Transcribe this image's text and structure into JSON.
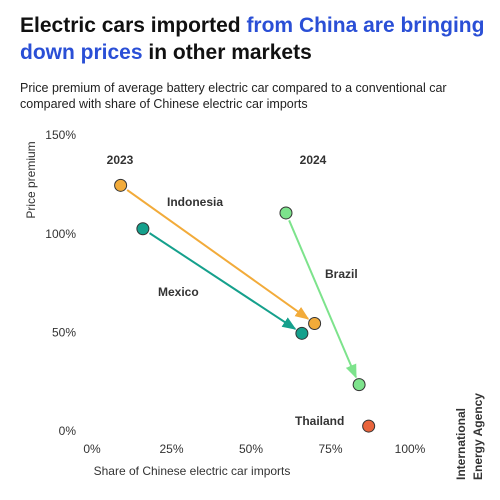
{
  "chart_data": {
    "type": "scatter",
    "title_parts": [
      "Electric cars imported ",
      "from China are bringing down prices",
      " in other markets"
    ],
    "subtitle": "Price premium of average battery electric car compared to a conventional car compared with share of Chinese electric car imports",
    "x_label": "Share of Chinese electric car imports",
    "y_label": "Price premium",
    "years": [
      "2023",
      "2024"
    ],
    "xlim": [
      0,
      100
    ],
    "ylim": [
      0,
      150
    ],
    "xticks": [
      {
        "value": 0,
        "label": "0%"
      },
      {
        "value": 25,
        "label": "25%"
      },
      {
        "value": 50,
        "label": "50%"
      },
      {
        "value": 75,
        "label": "75%"
      },
      {
        "value": 100,
        "label": "100%"
      }
    ],
    "yticks": [
      {
        "value": 0,
        "label": "0%"
      },
      {
        "value": 50,
        "label": "50%"
      },
      {
        "value": 100,
        "label": "100%"
      },
      {
        "value": 150,
        "label": "150%"
      }
    ],
    "series": [
      {
        "name": "Indonesia",
        "color": "#f2ab3a",
        "x": [
          9,
          70
        ],
        "values": [
          125,
          55
        ]
      },
      {
        "name": "Mexico",
        "color": "#15a08c",
        "x": [
          16,
          66
        ],
        "values": [
          103,
          50
        ]
      },
      {
        "name": "Brazil",
        "color": "#7de38c",
        "x": [
          61,
          84
        ],
        "values": [
          111,
          24
        ]
      },
      {
        "name": "Thailand",
        "color": "#e8643c",
        "x": [
          null,
          87
        ],
        "values": [
          null,
          3
        ]
      }
    ],
    "source": [
      "International",
      "Energy Agency"
    ]
  }
}
